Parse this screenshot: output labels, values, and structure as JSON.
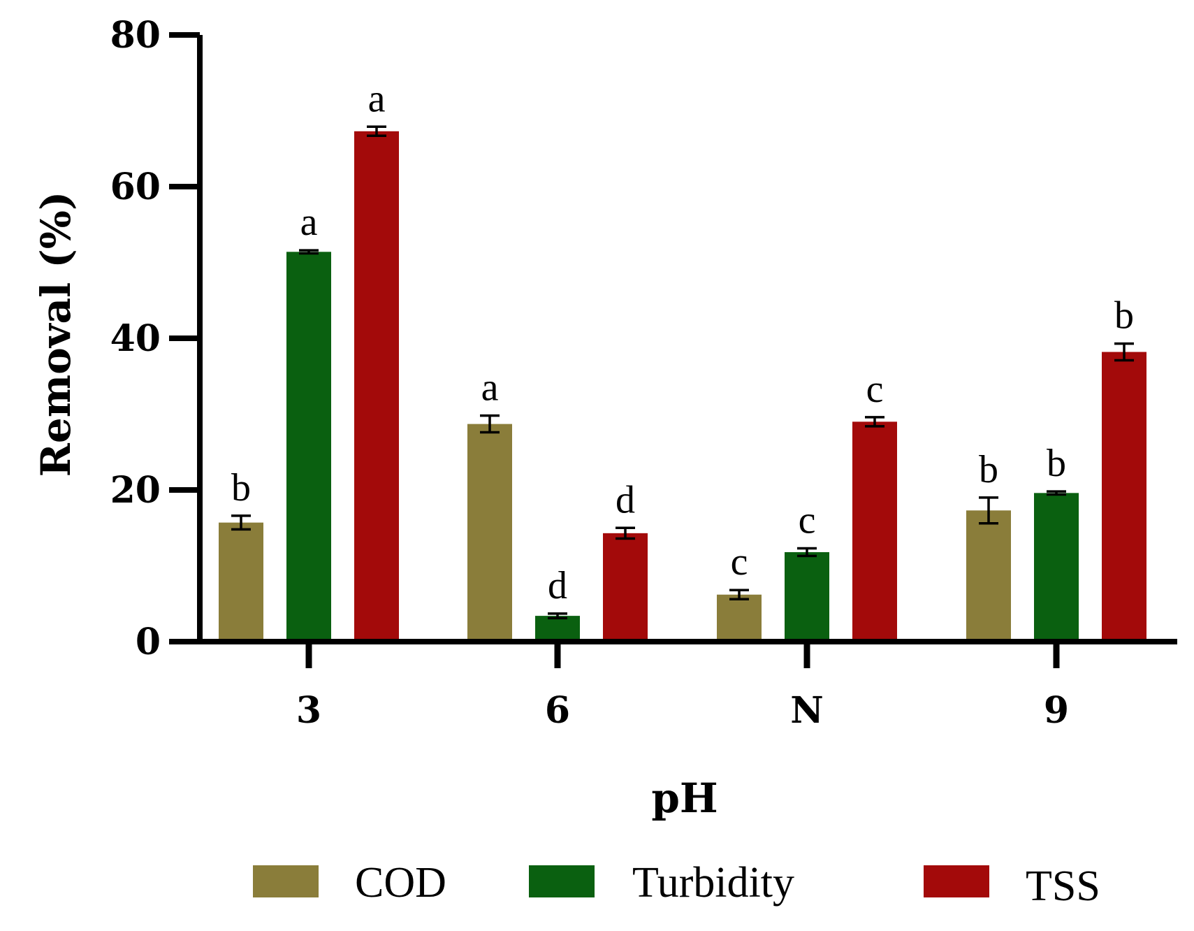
{
  "chart_data": {
    "type": "bar",
    "xlabel": "pH",
    "ylabel": "Removal (%)",
    "ylim": [
      0,
      80
    ],
    "yticks": [
      0,
      20,
      40,
      60,
      80
    ],
    "categories": [
      "3",
      "6",
      "N",
      "9"
    ],
    "grid": false,
    "legend_position": "bottom",
    "series": [
      {
        "name": "COD",
        "color": "#8a7d3a",
        "values": [
          15.7,
          28.7,
          6.2,
          17.3
        ],
        "errors": [
          0.9,
          1.1,
          0.6,
          1.7
        ],
        "labels": [
          "b",
          "a",
          "c",
          "b"
        ]
      },
      {
        "name": "Turbidity",
        "color": "#0a6010",
        "values": [
          51.4,
          3.4,
          11.8,
          19.6
        ],
        "errors": [
          0.2,
          0.3,
          0.5,
          0.2
        ],
        "labels": [
          "a",
          "d",
          "c",
          "b"
        ]
      },
      {
        "name": "TSS",
        "color": "#a30a0a",
        "values": [
          67.3,
          14.3,
          29.0,
          38.2
        ],
        "errors": [
          0.6,
          0.7,
          0.6,
          1.1
        ],
        "labels": [
          "a",
          "d",
          "c",
          "b"
        ]
      }
    ]
  }
}
